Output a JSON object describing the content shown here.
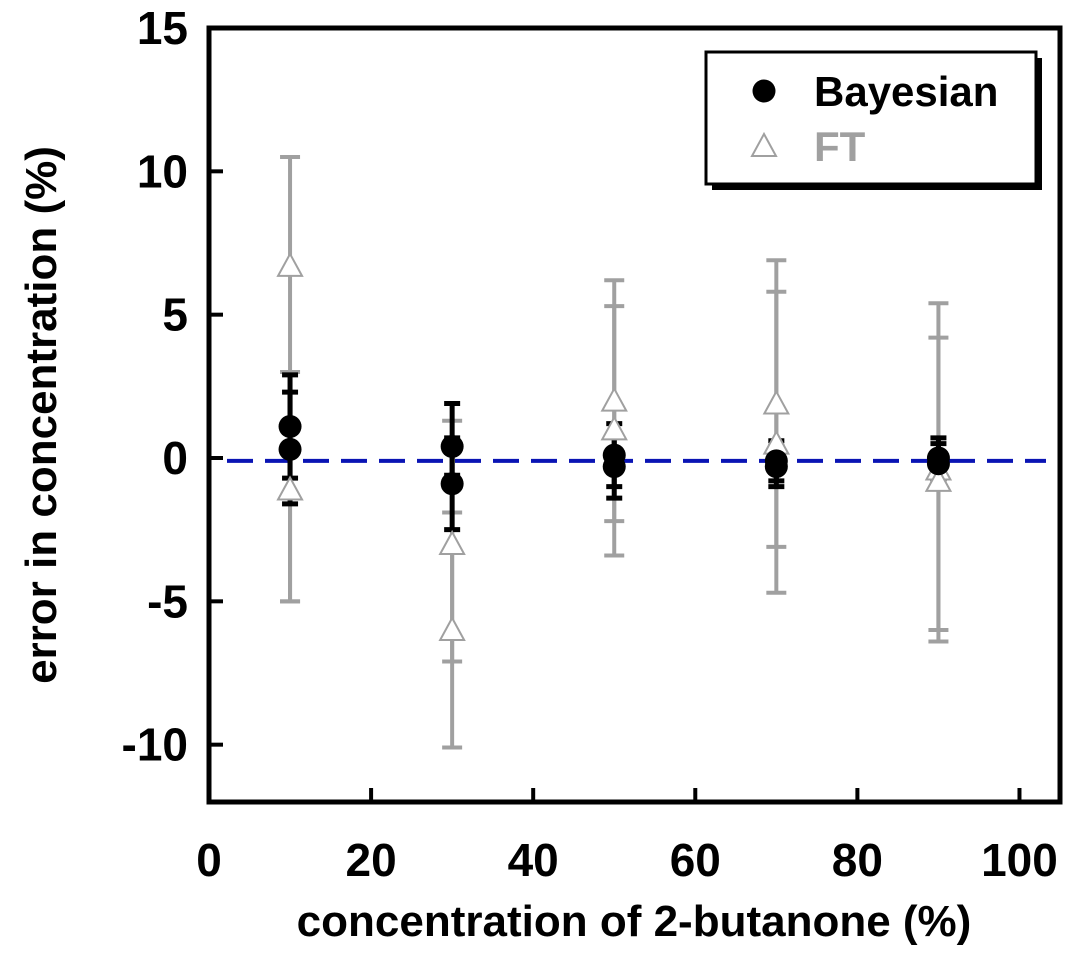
{
  "chart_data": {
    "type": "scatter",
    "xlabel": "concentration of 2-butanone (%)",
    "ylabel": "error in concentration (%)",
    "xlim": [
      0,
      105
    ],
    "ylim": [
      -12,
      15
    ],
    "x_ticks": [
      0,
      20,
      40,
      60,
      80,
      100
    ],
    "y_ticks": [
      -10,
      -5,
      0,
      5,
      10,
      15
    ],
    "x_tick_labels": [
      "0",
      "20",
      "40",
      "60",
      "80",
      "100"
    ],
    "y_tick_labels": [
      "-10",
      "-5",
      "0",
      "5",
      "10",
      "15"
    ],
    "reference_line": {
      "y": -0.1,
      "style": "dashed",
      "color": "#0a14b4"
    },
    "legend": {
      "placement": "top-right"
    },
    "series": [
      {
        "name": "FT",
        "marker": "open-triangle",
        "color": "#a0a0a0",
        "points": [
          {
            "x": 10,
            "y": 6.7,
            "err_low": -5.0,
            "err_high": 10.5
          },
          {
            "x": 10,
            "y": -1.1,
            "err_low": -5.0,
            "err_high": 3.0
          },
          {
            "x": 30,
            "y": -3.0,
            "err_low": -7.1,
            "err_high": 1.3
          },
          {
            "x": 30,
            "y": -6.0,
            "err_low": -10.1,
            "err_high": -1.9
          },
          {
            "x": 50,
            "y": 2.0,
            "err_low": -2.2,
            "err_high": 6.2
          },
          {
            "x": 50,
            "y": 1.0,
            "err_low": -3.4,
            "err_high": 5.3
          },
          {
            "x": 70,
            "y": 1.9,
            "err_low": -3.1,
            "err_high": 6.9
          },
          {
            "x": 70,
            "y": 0.5,
            "err_low": -4.7,
            "err_high": 5.8
          },
          {
            "x": 90,
            "y": -0.4,
            "err_low": -6.0,
            "err_high": 5.4
          },
          {
            "x": 90,
            "y": -0.8,
            "err_low": -6.4,
            "err_high": 4.2
          }
        ]
      },
      {
        "name": "Bayesian",
        "marker": "filled-circle",
        "color": "#000000",
        "points": [
          {
            "x": 10,
            "y": 1.1,
            "err_low": -0.7,
            "err_high": 2.9
          },
          {
            "x": 10,
            "y": 0.3,
            "err_low": -1.6,
            "err_high": 2.3
          },
          {
            "x": 30,
            "y": 0.4,
            "err_low": -0.6,
            "err_high": 1.9
          },
          {
            "x": 30,
            "y": -0.9,
            "err_low": -2.5,
            "err_high": 0.7
          },
          {
            "x": 50,
            "y": 0.1,
            "err_low": -1.0,
            "err_high": 1.2
          },
          {
            "x": 50,
            "y": -0.3,
            "err_low": -1.4,
            "err_high": 0.8
          },
          {
            "x": 70,
            "y": -0.1,
            "err_low": -0.8,
            "err_high": 0.6
          },
          {
            "x": 70,
            "y": -0.3,
            "err_low": -1.0,
            "err_high": 0.4
          },
          {
            "x": 90,
            "y": 0.0,
            "err_low": -0.7,
            "err_high": 0.7
          },
          {
            "x": 90,
            "y": -0.2,
            "err_low": -0.8,
            "err_high": 0.5
          }
        ]
      }
    ]
  }
}
